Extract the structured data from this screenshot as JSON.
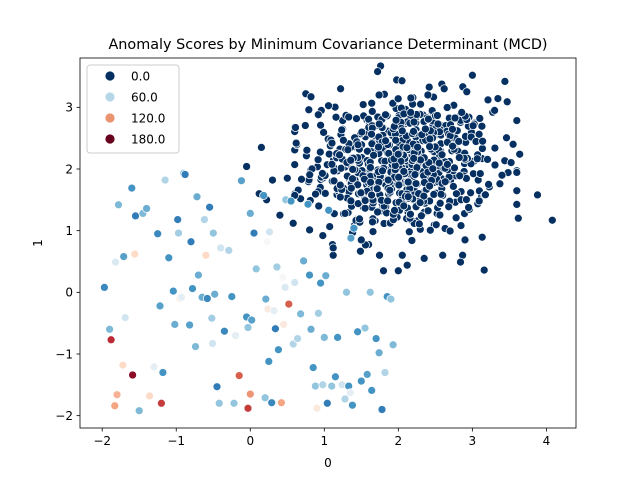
{
  "chart_data": {
    "type": "scatter",
    "title": "Anomaly Scores by Minimum Covariance Determinant (MCD)",
    "xlabel": "0",
    "ylabel": "1",
    "xlim": [
      -2.3,
      4.4
    ],
    "ylim": [
      -2.2,
      3.8
    ],
    "xticks": [
      -2,
      -1,
      0,
      1,
      2,
      3,
      4
    ],
    "yticks": [
      -2,
      -1,
      0,
      1,
      2,
      3
    ],
    "xtick_labels": [
      "−2",
      "−1",
      "0",
      "1",
      "2",
      "3",
      "4"
    ],
    "ytick_labels": [
      "−2",
      "−1",
      "0",
      "1",
      "2",
      "3"
    ],
    "grid": false,
    "legend": {
      "placement": "top-left",
      "entries": [
        {
          "label": "0.0",
          "color": "#053061"
        },
        {
          "label": "60.0",
          "color": "#b6d7e8"
        },
        {
          "label": "120.0",
          "color": "#e9946f"
        },
        {
          "label": "180.0",
          "color": "#67001f"
        }
      ]
    },
    "hue_range": [
      0,
      200
    ],
    "inlier_cluster": {
      "count": 700,
      "center": [
        2.05,
        2.05
      ],
      "std": [
        0.6,
        0.55
      ],
      "score": 0,
      "edge_points": [
        {
          "x": 4.08,
          "y": 1.17,
          "score": 0
        },
        {
          "x": 3.62,
          "y": 1.2,
          "score": 0
        },
        {
          "x": 3.88,
          "y": 1.58,
          "score": 0
        },
        {
          "x": 3.44,
          "y": 3.42,
          "score": 0
        },
        {
          "x": 3.47,
          "y": 3.09,
          "score": 0
        },
        {
          "x": 3.0,
          "y": 3.52,
          "score": 0
        },
        {
          "x": 1.76,
          "y": 3.67,
          "score": 0
        },
        {
          "x": 1.72,
          "y": 3.58,
          "score": 0
        },
        {
          "x": 3.16,
          "y": 0.36,
          "score": 0
        },
        {
          "x": 2.84,
          "y": 0.49,
          "score": 0
        },
        {
          "x": 3.64,
          "y": 2.24,
          "score": 0
        },
        {
          "x": 3.55,
          "y": 2.4,
          "score": 0
        },
        {
          "x": -0.05,
          "y": 2.04,
          "score": 0
        },
        {
          "x": 0.12,
          "y": 1.6,
          "score": 0
        },
        {
          "x": 0.3,
          "y": 1.82,
          "score": 0
        },
        {
          "x": 0.22,
          "y": 1.5,
          "score": 0
        },
        {
          "x": 0.4,
          "y": 1.25,
          "score": 0
        },
        {
          "x": 0.75,
          "y": 3.22,
          "score": 0
        },
        {
          "x": 0.82,
          "y": 3.17,
          "score": 0
        },
        {
          "x": 1.22,
          "y": 3.3,
          "score": 0
        },
        {
          "x": 1.5,
          "y": 0.85,
          "score": 0
        },
        {
          "x": 1.8,
          "y": 0.35,
          "score": 0
        },
        {
          "x": 2.0,
          "y": 0.35,
          "score": 0
        },
        {
          "x": 2.12,
          "y": 0.44,
          "score": 0
        },
        {
          "x": 2.35,
          "y": 0.55,
          "score": 0
        },
        {
          "x": 1.12,
          "y": 0.72,
          "score": 0
        },
        {
          "x": 0.98,
          "y": 0.92,
          "score": 0
        },
        {
          "x": 0.58,
          "y": 1.12,
          "score": 0
        },
        {
          "x": 0.62,
          "y": 2.42,
          "score": 0
        },
        {
          "x": 0.95,
          "y": 2.71,
          "score": 0
        },
        {
          "x": 2.9,
          "y": 0.85,
          "score": 0
        },
        {
          "x": 2.62,
          "y": 3.3,
          "score": 0
        },
        {
          "x": 2.4,
          "y": 3.2,
          "score": 0
        },
        {
          "x": 2.05,
          "y": 3.43,
          "score": 0
        },
        {
          "x": 3.1,
          "y": 2.82,
          "score": 0
        },
        {
          "x": 3.3,
          "y": 2.95,
          "score": 0
        },
        {
          "x": 3.4,
          "y": 1.9,
          "score": 0
        },
        {
          "x": 3.22,
          "y": 1.75,
          "score": 0
        },
        {
          "x": 0.5,
          "y": 1.85,
          "score": 0
        },
        {
          "x": 0.15,
          "y": 2.35,
          "score": 0
        }
      ]
    },
    "outliers": [
      {
        "x": -1.97,
        "y": 0.08,
        "score": 35
      },
      {
        "x": -1.9,
        "y": -0.6,
        "score": 55
      },
      {
        "x": -1.88,
        "y": -0.77,
        "score": 175
      },
      {
        "x": -1.83,
        "y": -1.84,
        "score": 140
      },
      {
        "x": -1.8,
        "y": -1.66,
        "score": 135
      },
      {
        "x": -1.82,
        "y": 0.49,
        "score": 85
      },
      {
        "x": -1.78,
        "y": 1.42,
        "score": 55
      },
      {
        "x": -1.72,
        "y": -1.18,
        "score": 120
      },
      {
        "x": -1.71,
        "y": 0.58,
        "score": 45
      },
      {
        "x": -1.69,
        "y": -0.41,
        "score": 80
      },
      {
        "x": -1.6,
        "y": 1.69,
        "score": 40
      },
      {
        "x": -1.59,
        "y": -1.34,
        "score": 190
      },
      {
        "x": -1.56,
        "y": 0.62,
        "score": 120
      },
      {
        "x": -1.55,
        "y": 1.24,
        "score": 30
      },
      {
        "x": -1.5,
        "y": -1.92,
        "score": 55
      },
      {
        "x": -1.45,
        "y": 1.28,
        "score": 55
      },
      {
        "x": -1.4,
        "y": 1.36,
        "score": 50
      },
      {
        "x": -1.36,
        "y": -1.68,
        "score": 120
      },
      {
        "x": -1.3,
        "y": -1.21,
        "score": 90
      },
      {
        "x": -1.25,
        "y": 0.95,
        "score": 35
      },
      {
        "x": -1.2,
        "y": -1.8,
        "score": 170
      },
      {
        "x": -1.22,
        "y": -0.22,
        "score": 45
      },
      {
        "x": -1.18,
        "y": -1.3,
        "score": 40
      },
      {
        "x": -1.15,
        "y": 1.82,
        "score": 70
      },
      {
        "x": -1.1,
        "y": 0.56,
        "score": 40
      },
      {
        "x": -1.04,
        "y": 0.02,
        "score": 40
      },
      {
        "x": -1.02,
        "y": -0.52,
        "score": 50
      },
      {
        "x": -0.98,
        "y": 1.18,
        "score": 30
      },
      {
        "x": -0.97,
        "y": 0.96,
        "score": 65
      },
      {
        "x": -0.95,
        "y": -0.1,
        "score": 110
      },
      {
        "x": -0.93,
        "y": -0.08,
        "score": 90
      },
      {
        "x": -0.9,
        "y": 1.93,
        "score": 60
      },
      {
        "x": -0.88,
        "y": 1.91,
        "score": 30
      },
      {
        "x": -0.82,
        "y": -0.53,
        "score": 45
      },
      {
        "x": -0.8,
        "y": 0.82,
        "score": 30
      },
      {
        "x": -0.78,
        "y": 0.06,
        "score": 40
      },
      {
        "x": -0.74,
        "y": -0.88,
        "score": 55
      },
      {
        "x": -0.72,
        "y": 1.55,
        "score": 50
      },
      {
        "x": -0.7,
        "y": 0.28,
        "score": 50
      },
      {
        "x": -0.65,
        "y": -0.08,
        "score": 50
      },
      {
        "x": -0.62,
        "y": 1.18,
        "score": 70
      },
      {
        "x": -0.6,
        "y": 0.6,
        "score": 120
      },
      {
        "x": -0.58,
        "y": -0.1,
        "score": 35
      },
      {
        "x": -0.55,
        "y": 1.38,
        "score": 30
      },
      {
        "x": -0.52,
        "y": -0.42,
        "score": 65
      },
      {
        "x": -0.51,
        "y": -0.83,
        "score": 80
      },
      {
        "x": -0.5,
        "y": 0.96,
        "score": 60
      },
      {
        "x": -0.48,
        "y": -0.03,
        "score": 50
      },
      {
        "x": -0.45,
        "y": -1.53,
        "score": 30
      },
      {
        "x": -0.42,
        "y": -1.8,
        "score": 60
      },
      {
        "x": -0.4,
        "y": 0.72,
        "score": 80
      },
      {
        "x": -0.35,
        "y": -0.63,
        "score": 35
      },
      {
        "x": -0.29,
        "y": 0.68,
        "score": 70
      },
      {
        "x": -0.25,
        "y": -0.07,
        "score": 40
      },
      {
        "x": -0.22,
        "y": -1.8,
        "score": 60
      },
      {
        "x": -0.2,
        "y": -0.7,
        "score": 90
      },
      {
        "x": -0.15,
        "y": -1.35,
        "score": 160
      },
      {
        "x": -0.12,
        "y": 1.81,
        "score": 45
      },
      {
        "x": -0.05,
        "y": -0.4,
        "score": 40
      },
      {
        "x": -0.03,
        "y": -0.57,
        "score": 60
      },
      {
        "x": -0.03,
        "y": -1.88,
        "score": 170
      },
      {
        "x": 0.0,
        "y": -1.65,
        "score": 145
      },
      {
        "x": 0.02,
        "y": -0.45,
        "score": 45
      },
      {
        "x": 0.05,
        "y": 0.96,
        "score": 30
      },
      {
        "x": 0.0,
        "y": 1.28,
        "score": 50
      },
      {
        "x": 0.08,
        "y": 0.38,
        "score": 60
      },
      {
        "x": 0.18,
        "y": 1.57,
        "score": 40
      },
      {
        "x": 0.2,
        "y": -1.71,
        "score": 60
      },
      {
        "x": 0.21,
        "y": -0.11,
        "score": 50
      },
      {
        "x": 0.23,
        "y": 0.82,
        "score": 100
      },
      {
        "x": 0.24,
        "y": -0.27,
        "score": 110
      },
      {
        "x": 0.25,
        "y": -1.12,
        "score": 40
      },
      {
        "x": 0.26,
        "y": 0.98,
        "score": 80
      },
      {
        "x": 0.29,
        "y": -1.79,
        "score": 35
      },
      {
        "x": 0.32,
        "y": -0.3,
        "score": 90
      },
      {
        "x": 0.34,
        "y": -0.59,
        "score": 30
      },
      {
        "x": 0.36,
        "y": 0.41,
        "score": 65
      },
      {
        "x": 0.38,
        "y": -0.93,
        "score": 40
      },
      {
        "x": 0.42,
        "y": -1.79,
        "score": 140
      },
      {
        "x": 0.44,
        "y": 0.24,
        "score": 100
      },
      {
        "x": 0.45,
        "y": -0.52,
        "score": 110
      },
      {
        "x": 0.47,
        "y": 0.08,
        "score": 85
      },
      {
        "x": 0.48,
        "y": 1.5,
        "score": 60
      },
      {
        "x": 0.52,
        "y": -0.19,
        "score": 160
      },
      {
        "x": 0.55,
        "y": 1.48,
        "score": 40
      },
      {
        "x": 0.58,
        "y": -0.84,
        "score": 70
      },
      {
        "x": 0.6,
        "y": 0.16,
        "score": 80
      },
      {
        "x": 0.64,
        "y": -0.75,
        "score": 70
      },
      {
        "x": 0.68,
        "y": -0.35,
        "score": 55
      },
      {
        "x": 0.72,
        "y": 0.51,
        "score": 50
      },
      {
        "x": 0.78,
        "y": 1.43,
        "score": 40
      },
      {
        "x": 0.8,
        "y": 0.28,
        "score": 40
      },
      {
        "x": 0.82,
        "y": -0.6,
        "score": 50
      },
      {
        "x": 0.85,
        "y": -1.22,
        "score": 40
      },
      {
        "x": 0.88,
        "y": -1.52,
        "score": 60
      },
      {
        "x": 0.9,
        "y": -1.88,
        "score": 110
      },
      {
        "x": 0.92,
        "y": -0.34,
        "score": 65
      },
      {
        "x": 0.95,
        "y": 0.15,
        "score": 40
      },
      {
        "x": 0.98,
        "y": -1.5,
        "score": 70
      },
      {
        "x": 1.0,
        "y": -0.73,
        "score": 55
      },
      {
        "x": 1.02,
        "y": 0.27,
        "score": 50
      },
      {
        "x": 1.04,
        "y": -1.8,
        "score": 30
      },
      {
        "x": 1.06,
        "y": 1.33,
        "score": 40
      },
      {
        "x": 1.1,
        "y": -1.52,
        "score": 60
      },
      {
        "x": 1.15,
        "y": -1.37,
        "score": 40
      },
      {
        "x": 1.18,
        "y": -0.73,
        "score": 40
      },
      {
        "x": 1.24,
        "y": -1.5,
        "score": 80
      },
      {
        "x": 1.28,
        "y": -1.73,
        "score": 70
      },
      {
        "x": 1.3,
        "y": 0.0,
        "score": 60
      },
      {
        "x": 1.33,
        "y": -1.52,
        "score": 40
      },
      {
        "x": 1.35,
        "y": -1.63,
        "score": 90
      },
      {
        "x": 1.36,
        "y": 0.88,
        "score": 45
      },
      {
        "x": 1.38,
        "y": -1.83,
        "score": 40
      },
      {
        "x": 1.4,
        "y": 1.04,
        "score": 40
      },
      {
        "x": 1.45,
        "y": -0.64,
        "score": 40
      },
      {
        "x": 1.5,
        "y": -1.44,
        "score": 40
      },
      {
        "x": 1.55,
        "y": -0.58,
        "score": 60
      },
      {
        "x": 1.58,
        "y": -1.33,
        "score": 45
      },
      {
        "x": 1.62,
        "y": 0.0,
        "score": 60
      },
      {
        "x": 1.64,
        "y": -1.59,
        "score": 40
      },
      {
        "x": 1.7,
        "y": -0.75,
        "score": 40
      },
      {
        "x": 1.74,
        "y": -0.98,
        "score": 50
      },
      {
        "x": 1.78,
        "y": -1.9,
        "score": 30
      },
      {
        "x": 1.82,
        "y": -1.3,
        "score": 70
      },
      {
        "x": 1.85,
        "y": -0.07,
        "score": 40
      },
      {
        "x": 1.9,
        "y": -0.11,
        "score": 60
      },
      {
        "x": 1.93,
        "y": -0.85,
        "score": 55
      }
    ]
  }
}
